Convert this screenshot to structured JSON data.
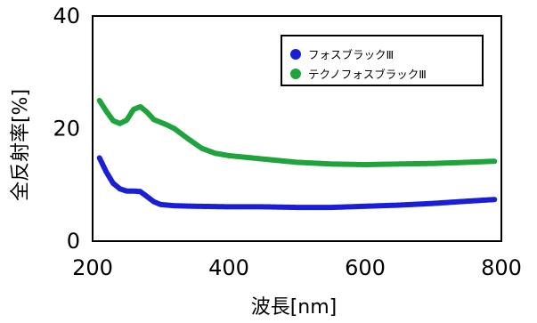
{
  "chart_data": {
    "type": "line",
    "xlabel": "波長[nm]",
    "ylabel": "全反射率[%]",
    "xlim": [
      200,
      800
    ],
    "ylim": [
      0,
      40
    ],
    "xticks": [
      200,
      400,
      600,
      800
    ],
    "yticks": [
      0,
      20,
      40
    ],
    "grid": false,
    "legend_position": "top-right",
    "series": [
      {
        "name": "フォスブラックⅢ",
        "color": "#1a1fd6",
        "x": [
          210,
          220,
          230,
          240,
          250,
          260,
          270,
          280,
          290,
          300,
          320,
          350,
          400,
          450,
          500,
          550,
          600,
          650,
          700,
          750,
          790
        ],
        "y": [
          14.8,
          12.3,
          10.3,
          9.3,
          8.9,
          8.9,
          8.8,
          7.9,
          7.0,
          6.5,
          6.3,
          6.2,
          6.1,
          6.1,
          6.0,
          6.0,
          6.2,
          6.4,
          6.7,
          7.1,
          7.4
        ]
      },
      {
        "name": "テクノフォスブラックⅢ",
        "color": "#1fa33c",
        "x": [
          210,
          220,
          230,
          240,
          250,
          260,
          270,
          280,
          290,
          300,
          310,
          320,
          340,
          360,
          380,
          400,
          450,
          500,
          550,
          600,
          650,
          700,
          750,
          790
        ],
        "y": [
          25.0,
          23.1,
          21.4,
          20.9,
          21.5,
          23.4,
          23.9,
          22.9,
          21.6,
          21.1,
          20.6,
          20.0,
          18.2,
          16.5,
          15.6,
          15.2,
          14.6,
          14.0,
          13.7,
          13.6,
          13.7,
          13.8,
          14.0,
          14.2
        ]
      }
    ]
  }
}
